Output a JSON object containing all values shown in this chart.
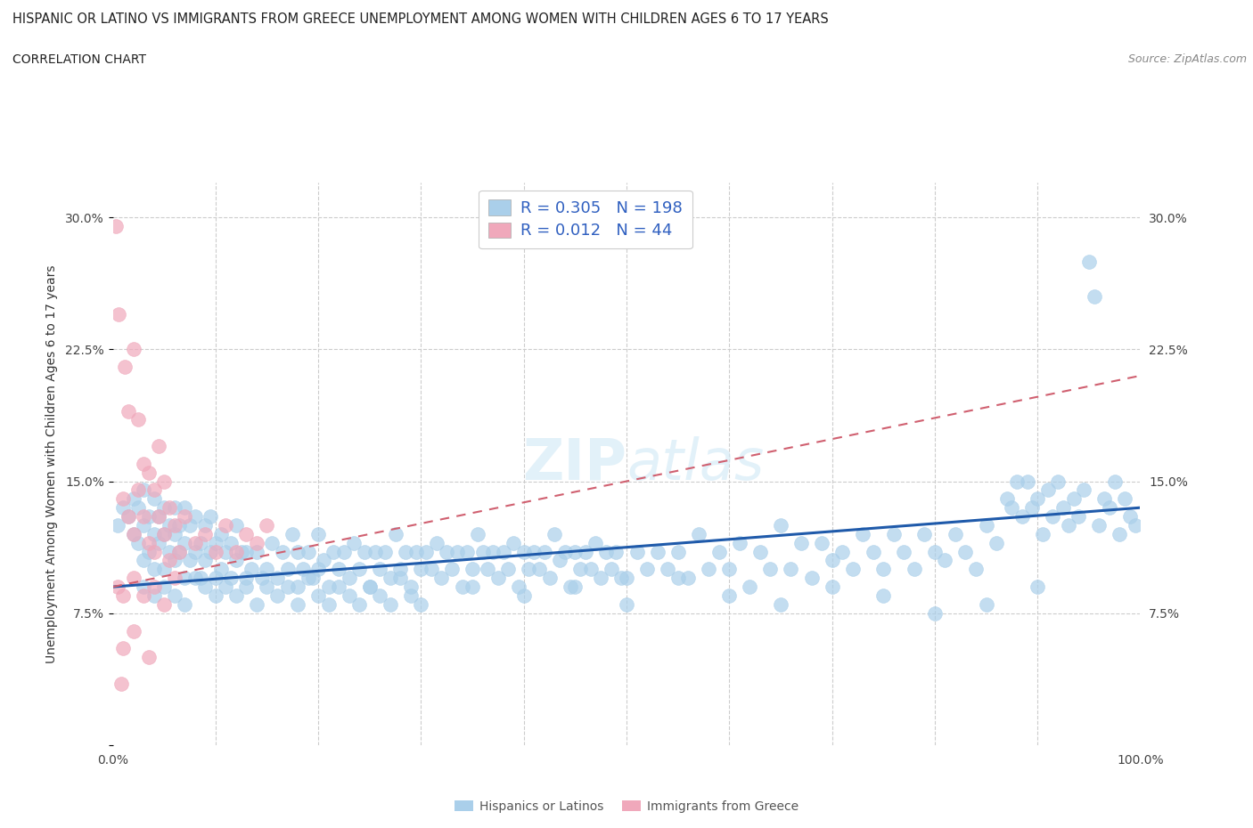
{
  "title": "HISPANIC OR LATINO VS IMMIGRANTS FROM GREECE UNEMPLOYMENT AMONG WOMEN WITH CHILDREN AGES 6 TO 17 YEARS",
  "subtitle": "CORRELATION CHART",
  "source": "Source: ZipAtlas.com",
  "ylabel": "Unemployment Among Women with Children Ages 6 to 17 years",
  "xlim": [
    0,
    100
  ],
  "ylim": [
    0,
    32
  ],
  "r_blue": 0.305,
  "n_blue": 198,
  "r_pink": 0.012,
  "n_pink": 44,
  "blue_color": "#aacfea",
  "pink_color": "#f0a8bb",
  "blue_line_color": "#1f5aaa",
  "pink_line_color": "#d06070",
  "grid_color": "#cccccc",
  "background_color": "#ffffff",
  "legend_label_blue": "Hispanics or Latinos",
  "legend_label_pink": "Immigrants from Greece",
  "blue_scatter": [
    [
      0.5,
      12.5
    ],
    [
      1.0,
      13.5
    ],
    [
      1.5,
      13.0
    ],
    [
      2.0,
      12.0
    ],
    [
      2.0,
      14.0
    ],
    [
      2.5,
      11.5
    ],
    [
      2.5,
      13.5
    ],
    [
      3.0,
      10.5
    ],
    [
      3.0,
      12.5
    ],
    [
      3.0,
      14.5
    ],
    [
      3.5,
      11.0
    ],
    [
      3.5,
      13.0
    ],
    [
      4.0,
      10.0
    ],
    [
      4.0,
      12.0
    ],
    [
      4.0,
      14.0
    ],
    [
      4.5,
      11.5
    ],
    [
      4.5,
      13.0
    ],
    [
      5.0,
      10.0
    ],
    [
      5.0,
      12.0
    ],
    [
      5.0,
      13.5
    ],
    [
      5.5,
      11.0
    ],
    [
      5.5,
      12.5
    ],
    [
      6.0,
      10.5
    ],
    [
      6.0,
      12.0
    ],
    [
      6.0,
      13.5
    ],
    [
      6.5,
      11.0
    ],
    [
      6.5,
      12.5
    ],
    [
      7.0,
      9.5
    ],
    [
      7.0,
      11.5
    ],
    [
      7.0,
      13.5
    ],
    [
      7.5,
      10.5
    ],
    [
      7.5,
      12.5
    ],
    [
      8.0,
      11.0
    ],
    [
      8.0,
      13.0
    ],
    [
      8.5,
      9.5
    ],
    [
      8.5,
      11.5
    ],
    [
      9.0,
      10.5
    ],
    [
      9.0,
      12.5
    ],
    [
      9.5,
      11.0
    ],
    [
      9.5,
      13.0
    ],
    [
      10.0,
      9.5
    ],
    [
      10.0,
      11.5
    ],
    [
      10.5,
      10.0
    ],
    [
      10.5,
      12.0
    ],
    [
      11.0,
      11.0
    ],
    [
      11.5,
      9.5
    ],
    [
      11.5,
      11.5
    ],
    [
      12.0,
      10.5
    ],
    [
      12.0,
      12.5
    ],
    [
      12.5,
      11.0
    ],
    [
      13.0,
      9.0
    ],
    [
      13.0,
      11.0
    ],
    [
      13.5,
      10.0
    ],
    [
      14.0,
      11.0
    ],
    [
      14.5,
      9.5
    ],
    [
      15.0,
      10.0
    ],
    [
      15.5,
      11.5
    ],
    [
      16.0,
      9.5
    ],
    [
      16.5,
      11.0
    ],
    [
      17.0,
      10.0
    ],
    [
      17.5,
      12.0
    ],
    [
      18.0,
      9.0
    ],
    [
      18.0,
      11.0
    ],
    [
      18.5,
      10.0
    ],
    [
      19.0,
      11.0
    ],
    [
      19.5,
      9.5
    ],
    [
      20.0,
      10.0
    ],
    [
      20.0,
      12.0
    ],
    [
      20.5,
      10.5
    ],
    [
      21.0,
      9.0
    ],
    [
      21.5,
      11.0
    ],
    [
      22.0,
      10.0
    ],
    [
      22.5,
      11.0
    ],
    [
      23.0,
      9.5
    ],
    [
      23.5,
      11.5
    ],
    [
      24.0,
      10.0
    ],
    [
      24.5,
      11.0
    ],
    [
      25.0,
      9.0
    ],
    [
      25.5,
      11.0
    ],
    [
      26.0,
      10.0
    ],
    [
      26.5,
      11.0
    ],
    [
      27.0,
      9.5
    ],
    [
      27.5,
      12.0
    ],
    [
      28.0,
      10.0
    ],
    [
      28.5,
      11.0
    ],
    [
      29.0,
      9.0
    ],
    [
      29.5,
      11.0
    ],
    [
      30.0,
      10.0
    ],
    [
      30.5,
      11.0
    ],
    [
      31.0,
      10.0
    ],
    [
      31.5,
      11.5
    ],
    [
      32.0,
      9.5
    ],
    [
      32.5,
      11.0
    ],
    [
      33.0,
      10.0
    ],
    [
      33.5,
      11.0
    ],
    [
      34.0,
      9.0
    ],
    [
      34.5,
      11.0
    ],
    [
      35.0,
      10.0
    ],
    [
      35.5,
      12.0
    ],
    [
      36.0,
      11.0
    ],
    [
      36.5,
      10.0
    ],
    [
      37.0,
      11.0
    ],
    [
      37.5,
      9.5
    ],
    [
      38.0,
      11.0
    ],
    [
      38.5,
      10.0
    ],
    [
      39.0,
      11.5
    ],
    [
      39.5,
      9.0
    ],
    [
      40.0,
      11.0
    ],
    [
      40.5,
      10.0
    ],
    [
      41.0,
      11.0
    ],
    [
      41.5,
      10.0
    ],
    [
      42.0,
      11.0
    ],
    [
      42.5,
      9.5
    ],
    [
      43.0,
      12.0
    ],
    [
      43.5,
      10.5
    ],
    [
      44.0,
      11.0
    ],
    [
      44.5,
      9.0
    ],
    [
      45.0,
      11.0
    ],
    [
      45.5,
      10.0
    ],
    [
      46.0,
      11.0
    ],
    [
      46.5,
      10.0
    ],
    [
      47.0,
      11.5
    ],
    [
      47.5,
      9.5
    ],
    [
      48.0,
      11.0
    ],
    [
      48.5,
      10.0
    ],
    [
      49.0,
      11.0
    ],
    [
      49.5,
      9.5
    ],
    [
      50.0,
      9.5
    ],
    [
      51.0,
      11.0
    ],
    [
      52.0,
      10.0
    ],
    [
      53.0,
      11.0
    ],
    [
      54.0,
      10.0
    ],
    [
      55.0,
      11.0
    ],
    [
      56.0,
      9.5
    ],
    [
      57.0,
      12.0
    ],
    [
      58.0,
      10.0
    ],
    [
      59.0,
      11.0
    ],
    [
      60.0,
      10.0
    ],
    [
      61.0,
      11.5
    ],
    [
      62.0,
      9.0
    ],
    [
      63.0,
      11.0
    ],
    [
      64.0,
      10.0
    ],
    [
      65.0,
      12.5
    ],
    [
      66.0,
      10.0
    ],
    [
      67.0,
      11.5
    ],
    [
      68.0,
      9.5
    ],
    [
      69.0,
      11.5
    ],
    [
      70.0,
      10.5
    ],
    [
      71.0,
      11.0
    ],
    [
      72.0,
      10.0
    ],
    [
      73.0,
      12.0
    ],
    [
      74.0,
      11.0
    ],
    [
      75.0,
      10.0
    ],
    [
      76.0,
      12.0
    ],
    [
      77.0,
      11.0
    ],
    [
      78.0,
      10.0
    ],
    [
      79.0,
      12.0
    ],
    [
      80.0,
      11.0
    ],
    [
      81.0,
      10.5
    ],
    [
      82.0,
      12.0
    ],
    [
      83.0,
      11.0
    ],
    [
      84.0,
      10.0
    ],
    [
      85.0,
      12.5
    ],
    [
      86.0,
      11.5
    ],
    [
      87.0,
      14.0
    ],
    [
      87.5,
      13.5
    ],
    [
      88.0,
      15.0
    ],
    [
      88.5,
      13.0
    ],
    [
      89.0,
      15.0
    ],
    [
      89.5,
      13.5
    ],
    [
      90.0,
      14.0
    ],
    [
      90.5,
      12.0
    ],
    [
      91.0,
      14.5
    ],
    [
      91.5,
      13.0
    ],
    [
      92.0,
      15.0
    ],
    [
      92.5,
      13.5
    ],
    [
      93.0,
      12.5
    ],
    [
      93.5,
      14.0
    ],
    [
      94.0,
      13.0
    ],
    [
      94.5,
      14.5
    ],
    [
      95.0,
      27.5
    ],
    [
      95.5,
      25.5
    ],
    [
      96.0,
      12.5
    ],
    [
      96.5,
      14.0
    ],
    [
      97.0,
      13.5
    ],
    [
      97.5,
      15.0
    ],
    [
      98.0,
      12.0
    ],
    [
      98.5,
      14.0
    ],
    [
      99.0,
      13.0
    ],
    [
      99.5,
      12.5
    ],
    [
      3.0,
      9.0
    ],
    [
      4.0,
      8.5
    ],
    [
      5.0,
      9.0
    ],
    [
      6.0,
      8.5
    ],
    [
      7.0,
      8.0
    ],
    [
      8.0,
      9.5
    ],
    [
      9.0,
      9.0
    ],
    [
      10.0,
      8.5
    ],
    [
      11.0,
      9.0
    ],
    [
      12.0,
      8.5
    ],
    [
      13.0,
      9.5
    ],
    [
      14.0,
      8.0
    ],
    [
      15.0,
      9.0
    ],
    [
      16.0,
      8.5
    ],
    [
      17.0,
      9.0
    ],
    [
      18.0,
      8.0
    ],
    [
      19.0,
      9.5
    ],
    [
      20.0,
      8.5
    ],
    [
      21.0,
      8.0
    ],
    [
      22.0,
      9.0
    ],
    [
      23.0,
      8.5
    ],
    [
      24.0,
      8.0
    ],
    [
      25.0,
      9.0
    ],
    [
      26.0,
      8.5
    ],
    [
      27.0,
      8.0
    ],
    [
      28.0,
      9.5
    ],
    [
      29.0,
      8.5
    ],
    [
      30.0,
      8.0
    ],
    [
      35.0,
      9.0
    ],
    [
      40.0,
      8.5
    ],
    [
      45.0,
      9.0
    ],
    [
      50.0,
      8.0
    ],
    [
      55.0,
      9.5
    ],
    [
      60.0,
      8.5
    ],
    [
      65.0,
      8.0
    ],
    [
      70.0,
      9.0
    ],
    [
      75.0,
      8.5
    ],
    [
      80.0,
      7.5
    ],
    [
      85.0,
      8.0
    ],
    [
      90.0,
      9.0
    ]
  ],
  "pink_scatter": [
    [
      0.3,
      29.5
    ],
    [
      0.6,
      24.5
    ],
    [
      1.2,
      21.5
    ],
    [
      1.5,
      19.0
    ],
    [
      2.0,
      22.5
    ],
    [
      2.5,
      18.5
    ],
    [
      3.0,
      16.0
    ],
    [
      3.5,
      15.5
    ],
    [
      4.0,
      14.5
    ],
    [
      4.5,
      17.0
    ],
    [
      5.0,
      15.0
    ],
    [
      5.5,
      13.5
    ],
    [
      1.0,
      14.0
    ],
    [
      1.5,
      13.0
    ],
    [
      2.0,
      12.0
    ],
    [
      2.5,
      14.5
    ],
    [
      3.0,
      13.0
    ],
    [
      3.5,
      11.5
    ],
    [
      4.0,
      11.0
    ],
    [
      4.5,
      13.0
    ],
    [
      5.0,
      12.0
    ],
    [
      5.5,
      10.5
    ],
    [
      6.0,
      12.5
    ],
    [
      6.5,
      11.0
    ],
    [
      7.0,
      13.0
    ],
    [
      8.0,
      11.5
    ],
    [
      9.0,
      12.0
    ],
    [
      10.0,
      11.0
    ],
    [
      11.0,
      12.5
    ],
    [
      12.0,
      11.0
    ],
    [
      13.0,
      12.0
    ],
    [
      14.0,
      11.5
    ],
    [
      15.0,
      12.5
    ],
    [
      0.5,
      9.0
    ],
    [
      1.0,
      8.5
    ],
    [
      2.0,
      9.5
    ],
    [
      3.0,
      8.5
    ],
    [
      4.0,
      9.0
    ],
    [
      5.0,
      8.0
    ],
    [
      6.0,
      9.5
    ],
    [
      1.0,
      5.5
    ],
    [
      2.0,
      6.5
    ],
    [
      3.5,
      5.0
    ],
    [
      0.8,
      3.5
    ]
  ],
  "blue_trendline_x": [
    0,
    100
  ],
  "blue_trendline_y": [
    9.0,
    13.5
  ],
  "pink_trendline_x": [
    0,
    100
  ],
  "pink_trendline_y": [
    9.0,
    21.0
  ]
}
